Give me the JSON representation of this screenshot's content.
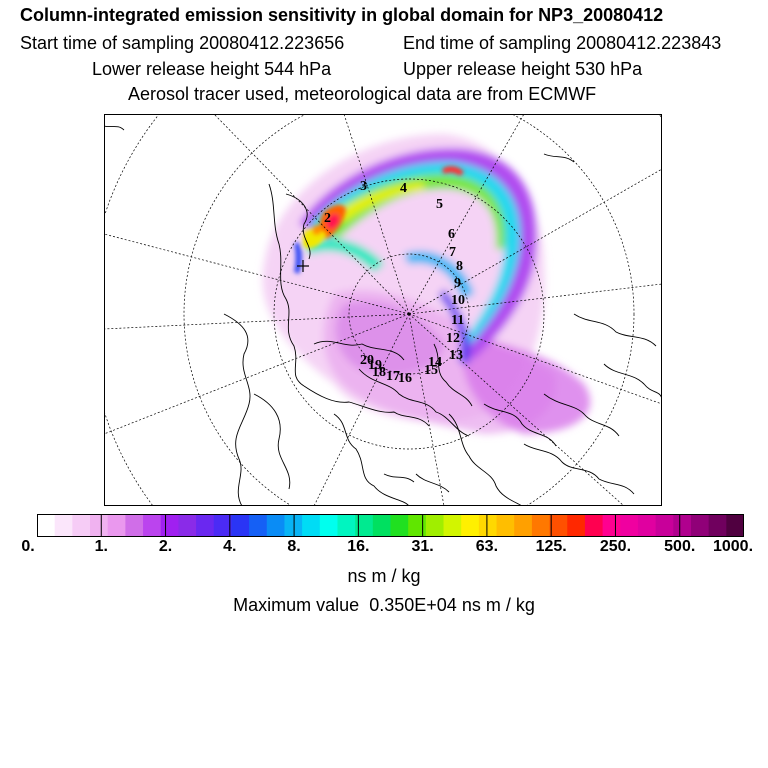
{
  "header": {
    "title": "Column-integrated emission sensitivity in global domain for NP3_20080412",
    "start_time": "Start time of sampling 20080412.223656",
    "end_time": "End time of sampling 20080412.223843",
    "lower_release": "Lower release height  544 hPa",
    "upper_release": "Upper release height  530 hPa",
    "aerosol": "Aerosol tracer used, meteorological data are from ECMWF"
  },
  "map": {
    "trajectory_labels": [
      "2",
      "3",
      "4",
      "5",
      "6",
      "7",
      "8",
      "9",
      "10",
      "11",
      "12",
      "13",
      "14",
      "15",
      "16",
      "17",
      "18",
      "19",
      "20"
    ]
  },
  "colorbar": {
    "ticks": [
      "0.",
      "1.",
      "2.",
      "4.",
      "8.",
      "16.",
      "31.",
      "63.",
      "125.",
      "250.",
      "500.",
      "1000."
    ],
    "colors": [
      "#ffffff",
      "#fbe6fb",
      "#f6ccf6",
      "#f0b2f0",
      "#ea98ee",
      "#d06ee8",
      "#bb44ee",
      "#a020f0",
      "#8a2be8",
      "#6a28f0",
      "#4b2bf5",
      "#2a35f5",
      "#1560f5",
      "#0a8cf5",
      "#08b4f5",
      "#00dcf5",
      "#00ffee",
      "#00f5c0",
      "#00ea90",
      "#00e060",
      "#20e020",
      "#60e600",
      "#a0ee00",
      "#d2f500",
      "#fff000",
      "#ffd800",
      "#ffbe00",
      "#ffa000",
      "#ff7800",
      "#ff5000",
      "#ff2800",
      "#ff0050",
      "#ff0090",
      "#f000a0",
      "#e000a0",
      "#c8009a",
      "#b0008e",
      "#900078",
      "#70005e",
      "#500040"
    ],
    "units": "ns m / kg"
  },
  "footer": {
    "max_label": "Maximum value",
    "max_value": "0.350E+04",
    "max_units": "ns m / kg"
  }
}
